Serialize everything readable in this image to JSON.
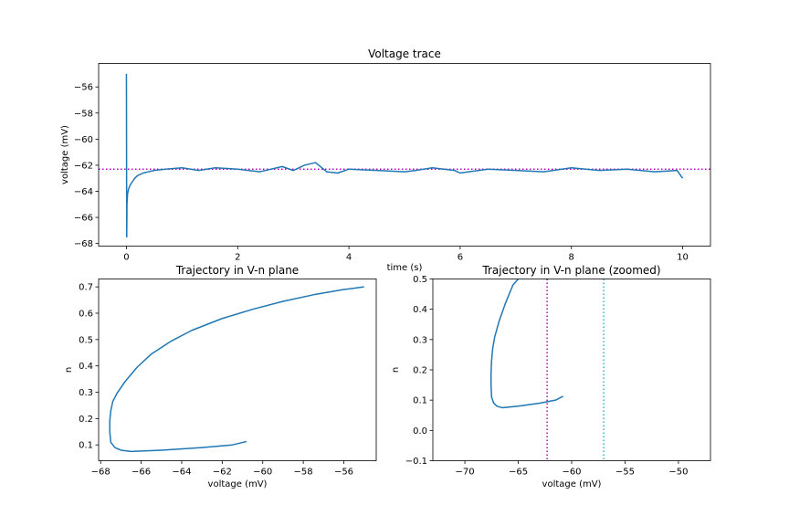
{
  "chart_data": [
    {
      "id": "voltage-trace",
      "type": "line",
      "title": "Voltage trace",
      "xlabel": "time (s)",
      "ylabel": "voltage (mV)",
      "xlim": [
        -0.5,
        10.5
      ],
      "ylim": [
        -68.2,
        -54.2
      ],
      "xticks": [
        0,
        2,
        4,
        6,
        8,
        10
      ],
      "xtick_labels": [
        "0",
        "2",
        "4",
        "6",
        "8",
        "10"
      ],
      "yticks": [
        -68,
        -66,
        -64,
        -62,
        -60,
        -58,
        -56
      ],
      "ytick_labels": [
        "−68",
        "−66",
        "−64",
        "−62",
        "−60",
        "−58",
        "−56"
      ],
      "grid": false,
      "color": "#1f77b4",
      "reference_lines": [
        {
          "axis": "y",
          "value": -62.3,
          "style": "dotted",
          "color": "#c000c0"
        }
      ],
      "series": [
        {
          "x": [
            0,
            0.005,
            0.01,
            0.02,
            0.04,
            0.07,
            0.1,
            0.15,
            0.2,
            0.3,
            0.4,
            0.5,
            0.7,
            1.0,
            1.3,
            1.6,
            2.0,
            2.4,
            2.8,
            3.0,
            3.2,
            3.4,
            3.6,
            3.8,
            4.0,
            4.5,
            5.0,
            5.2,
            5.5,
            5.9,
            6.0,
            6.5,
            7.0,
            7.5,
            8.0,
            8.5,
            9.0,
            9.5,
            9.9,
            10.0
          ],
          "y": [
            -55.0,
            -67.5,
            -65.0,
            -64.2,
            -63.8,
            -63.5,
            -63.3,
            -63.0,
            -62.8,
            -62.6,
            -62.5,
            -62.4,
            -62.3,
            -62.2,
            -62.4,
            -62.2,
            -62.3,
            -62.5,
            -62.1,
            -62.4,
            -62.0,
            -61.8,
            -62.5,
            -62.6,
            -62.3,
            -62.4,
            -62.5,
            -62.4,
            -62.2,
            -62.4,
            -62.6,
            -62.3,
            -62.4,
            -62.5,
            -62.2,
            -62.4,
            -62.3,
            -62.5,
            -62.4,
            -63.0
          ]
        }
      ]
    },
    {
      "id": "vn-plane",
      "type": "line",
      "title": "Trajectory in V-n plane",
      "xlabel": "voltage (mV)",
      "ylabel": "n",
      "xlim": [
        -68.1,
        -54.4
      ],
      "ylim": [
        0.04,
        0.73
      ],
      "xticks": [
        -68,
        -66,
        -64,
        -62,
        -60,
        -58,
        -56
      ],
      "xtick_labels": [
        "−68",
        "−66",
        "−64",
        "−62",
        "−60",
        "−58",
        "−56"
      ],
      "yticks": [
        0.1,
        0.2,
        0.3,
        0.4,
        0.5,
        0.6,
        0.7
      ],
      "ytick_labels": [
        "0.1",
        "0.2",
        "0.3",
        "0.4",
        "0.5",
        "0.6",
        "0.7"
      ],
      "grid": false,
      "color": "#1f77b4",
      "series": [
        {
          "x": [
            -55.0,
            -56.0,
            -57.5,
            -59.0,
            -60.5,
            -62.0,
            -63.5,
            -64.5,
            -65.5,
            -66.2,
            -66.8,
            -67.2,
            -67.4,
            -67.5,
            -67.55,
            -67.55,
            -67.5,
            -67.3,
            -67.0,
            -66.5,
            -65.0,
            -63.0,
            -61.5,
            -60.8
          ],
          "x_note": "",
          "y": [
            0.7,
            0.69,
            0.67,
            0.645,
            0.615,
            0.58,
            0.535,
            0.495,
            0.445,
            0.395,
            0.34,
            0.295,
            0.265,
            0.23,
            0.19,
            0.15,
            0.11,
            0.09,
            0.08,
            0.075,
            0.08,
            0.09,
            0.1,
            0.113
          ]
        }
      ]
    },
    {
      "id": "vn-plane-zoomed",
      "type": "line",
      "title": "Trajectory in V-n plane (zoomed)",
      "xlabel": "voltage (mV)",
      "ylabel": "n",
      "xlim": [
        -73,
        -47
      ],
      "ylim": [
        -0.1,
        0.5
      ],
      "xticks": [
        -70,
        -65,
        -60,
        -55,
        -50
      ],
      "xtick_labels": [
        "−70",
        "−65",
        "−60",
        "−55",
        "−50"
      ],
      "yticks": [
        -0.1,
        0.0,
        0.1,
        0.2,
        0.3,
        0.4,
        0.5
      ],
      "ytick_labels": [
        "−0.1",
        "0.0",
        "0.1",
        "0.2",
        "0.3",
        "0.4",
        "0.5"
      ],
      "grid": false,
      "color": "#1f77b4",
      "reference_lines": [
        {
          "axis": "x",
          "value": -62.3,
          "style": "dotted",
          "color": "#c000c0"
        },
        {
          "axis": "x",
          "value": -57.0,
          "style": "dotted",
          "color": "#17becf"
        }
      ],
      "series": [
        {
          "x": [
            -65.0,
            -65.5,
            -66.2,
            -66.8,
            -67.2,
            -67.4,
            -67.5,
            -67.55,
            -67.55,
            -67.5,
            -67.3,
            -67.0,
            -66.5,
            -65.0,
            -63.0,
            -61.5,
            -60.8
          ],
          "y": [
            0.5,
            0.48,
            0.42,
            0.36,
            0.31,
            0.27,
            0.23,
            0.19,
            0.15,
            0.11,
            0.09,
            0.08,
            0.075,
            0.08,
            0.09,
            0.1,
            0.113
          ]
        }
      ]
    }
  ]
}
